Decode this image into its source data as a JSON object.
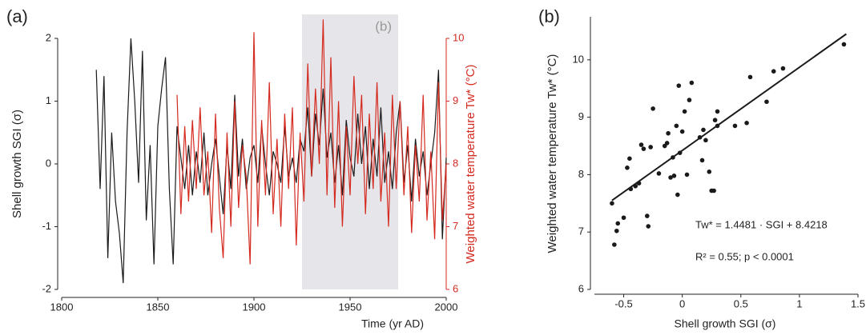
{
  "chart_data": [
    {
      "type": "line",
      "panel_label": "(a)",
      "x_label": "Time (yr AD)",
      "y_label": "Shell growth SGI (σ)",
      "y2_label": "Weighted water temperature Tw* (°C)",
      "xlim": [
        1800,
        2000
      ],
      "xticks": [
        1800,
        1850,
        1900,
        1950,
        2000
      ],
      "ylim": [
        -2,
        2
      ],
      "yticks": [
        -2,
        -1,
        0,
        1,
        2
      ],
      "y2lim": [
        6,
        10
      ],
      "y2ticks": [
        6,
        7,
        8,
        9,
        10
      ],
      "y2_color": "#d42a20",
      "shaded_region": {
        "x": [
          1925,
          1975
        ],
        "label": "(b)",
        "color": "#e6e6ea"
      },
      "series": [
        {
          "color": "#1a1a1a",
          "x": [
            1818,
            1820,
            1822,
            1824,
            1826,
            1828,
            1830,
            1832,
            1834,
            1836,
            1838,
            1840,
            1842,
            1844,
            1846,
            1848,
            1850,
            1852,
            1854,
            1856,
            1858,
            1860,
            1862,
            1864,
            1866,
            1868,
            1870,
            1872,
            1874,
            1876,
            1878,
            1880,
            1882,
            1884,
            1886,
            1888,
            1890,
            1892,
            1894,
            1896,
            1898,
            1900,
            1902,
            1904,
            1906,
            1908,
            1910,
            1912,
            1914,
            1916,
            1918,
            1920,
            1922,
            1924,
            1926,
            1928,
            1930,
            1932,
            1934,
            1936,
            1938,
            1940,
            1942,
            1944,
            1946,
            1948,
            1950,
            1952,
            1954,
            1956,
            1958,
            1960,
            1962,
            1964,
            1966,
            1968,
            1970,
            1972,
            1974,
            1976,
            1978,
            1980,
            1982,
            1984,
            1986,
            1988,
            1990,
            1992,
            1994,
            1996,
            1998,
            2000
          ],
          "values": [
            1.5,
            -0.4,
            1.4,
            -1.5,
            0.5,
            -0.6,
            -1.1,
            -1.9,
            0.5,
            2.0,
            1.0,
            -0.3,
            1.8,
            -0.9,
            0.3,
            -1.6,
            0.6,
            1.2,
            1.7,
            -0.4,
            -1.6,
            0.6,
            0.1,
            -0.4,
            0.3,
            -0.5,
            0.2,
            -0.3,
            0.5,
            -0.5,
            0.0,
            0.4,
            -0.2,
            -0.8,
            0.3,
            -0.4,
            1.1,
            -0.2,
            0.4,
            -0.4,
            0.1,
            0.3,
            -0.3,
            0.6,
            0.0,
            -0.5,
            0.2,
            0.0,
            -0.3,
            0.6,
            -0.2,
            0.1,
            -0.3,
            0.4,
            0.2,
            0.9,
            -0.2,
            0.8,
            0.3,
            1.2,
            0.1,
            0.5,
            -0.3,
            0.3,
            -0.5,
            0.7,
            0.1,
            -0.2,
            0.8,
            0.0,
            0.6,
            -0.4,
            0.4,
            -0.2,
            0.9,
            -0.3,
            0.2,
            -0.4,
            0.5,
            1.0,
            -0.3,
            0.3,
            -0.6,
            0.4,
            -0.2,
            0.2,
            -0.5,
            0.0,
            0.5,
            1.5,
            -1.2,
            0.1
          ]
        },
        {
          "color": "#d42a20",
          "axis": "y2",
          "x": [
            1860,
            1862,
            1864,
            1866,
            1868,
            1870,
            1872,
            1874,
            1876,
            1878,
            1880,
            1882,
            1884,
            1886,
            1888,
            1890,
            1892,
            1894,
            1896,
            1898,
            1900,
            1902,
            1904,
            1906,
            1908,
            1910,
            1912,
            1914,
            1916,
            1918,
            1920,
            1922,
            1924,
            1926,
            1928,
            1930,
            1932,
            1934,
            1936,
            1938,
            1940,
            1942,
            1944,
            1946,
            1948,
            1950,
            1952,
            1954,
            1956,
            1958,
            1960,
            1962,
            1964,
            1966,
            1968,
            1970,
            1972,
            1974,
            1976,
            1978,
            1980,
            1982,
            1984,
            1986,
            1988,
            1990,
            1992,
            1994,
            1996,
            1998,
            2000
          ],
          "values": [
            9.1,
            7.2,
            8.6,
            7.4,
            8.7,
            7.6,
            8.9,
            7.5,
            8.2,
            6.9,
            8.8,
            7.3,
            6.5,
            8.5,
            7.0,
            9.0,
            7.3,
            8.3,
            7.8,
            6.4,
            10.1,
            7.0,
            8.7,
            7.5,
            9.3,
            7.2,
            8.4,
            7.0,
            8.8,
            7.6,
            8.9,
            6.7,
            8.5,
            7.4,
            9.6,
            7.8,
            9.2,
            8.0,
            10.3,
            7.5,
            9.7,
            7.3,
            9.0,
            7.0,
            8.6,
            7.5,
            9.4,
            8.0,
            9.1,
            7.2,
            8.8,
            7.6,
            9.3,
            7.4,
            8.5,
            7.0,
            9.1,
            7.6,
            9.0,
            7.5,
            8.6,
            6.9,
            8.3,
            7.4,
            9.1,
            7.1,
            8.2,
            6.8,
            9.3,
            7.1,
            8.0
          ]
        }
      ]
    },
    {
      "type": "scatter",
      "panel_label": "(b)",
      "x_label": "Shell growth SGI (σ)",
      "y_label": "Weighted water temperature Tw* (°C)",
      "xlim": [
        -0.75,
        1.5
      ],
      "xticks": [
        -0.5,
        0,
        0.5,
        1,
        1.5
      ],
      "ylim": [
        6,
        10.75
      ],
      "yticks": [
        6,
        7,
        8,
        9,
        10
      ],
      "color": "#1a1a1a",
      "x": [
        -0.6,
        -0.58,
        -0.56,
        -0.55,
        -0.5,
        -0.47,
        -0.45,
        -0.44,
        -0.4,
        -0.37,
        -0.35,
        -0.33,
        -0.3,
        -0.29,
        -0.27,
        -0.25,
        -0.2,
        -0.15,
        -0.13,
        -0.12,
        -0.1,
        -0.08,
        -0.07,
        -0.05,
        -0.04,
        -0.03,
        -0.02,
        0.0,
        0.02,
        0.04,
        0.06,
        0.08,
        0.15,
        0.17,
        0.18,
        0.2,
        0.23,
        0.25,
        0.27,
        0.28,
        0.3,
        0.3,
        0.45,
        0.55,
        0.58,
        0.72,
        0.78,
        0.86,
        1.38
      ],
      "values": [
        7.5,
        6.78,
        7.02,
        7.15,
        7.25,
        8.12,
        8.28,
        7.75,
        7.8,
        7.85,
        8.52,
        8.45,
        7.28,
        7.1,
        8.48,
        9.15,
        8.02,
        8.5,
        8.55,
        8.72,
        7.95,
        8.3,
        7.98,
        8.85,
        7.65,
        9.55,
        8.38,
        8.75,
        9.1,
        8.0,
        9.3,
        9.6,
        8.65,
        8.25,
        8.78,
        8.6,
        8.05,
        7.72,
        7.72,
        8.95,
        9.1,
        8.85,
        8.85,
        8.9,
        9.7,
        9.27,
        9.8,
        9.85,
        10.27
      ],
      "fit": {
        "x": [
          -0.6,
          1.4
        ],
        "values": [
          7.55,
          10.45
        ]
      },
      "annotations": [
        "Tw* = 1.4481 · SGI + 8.4218",
        "R² = 0.55;  p < 0.0001"
      ]
    }
  ]
}
